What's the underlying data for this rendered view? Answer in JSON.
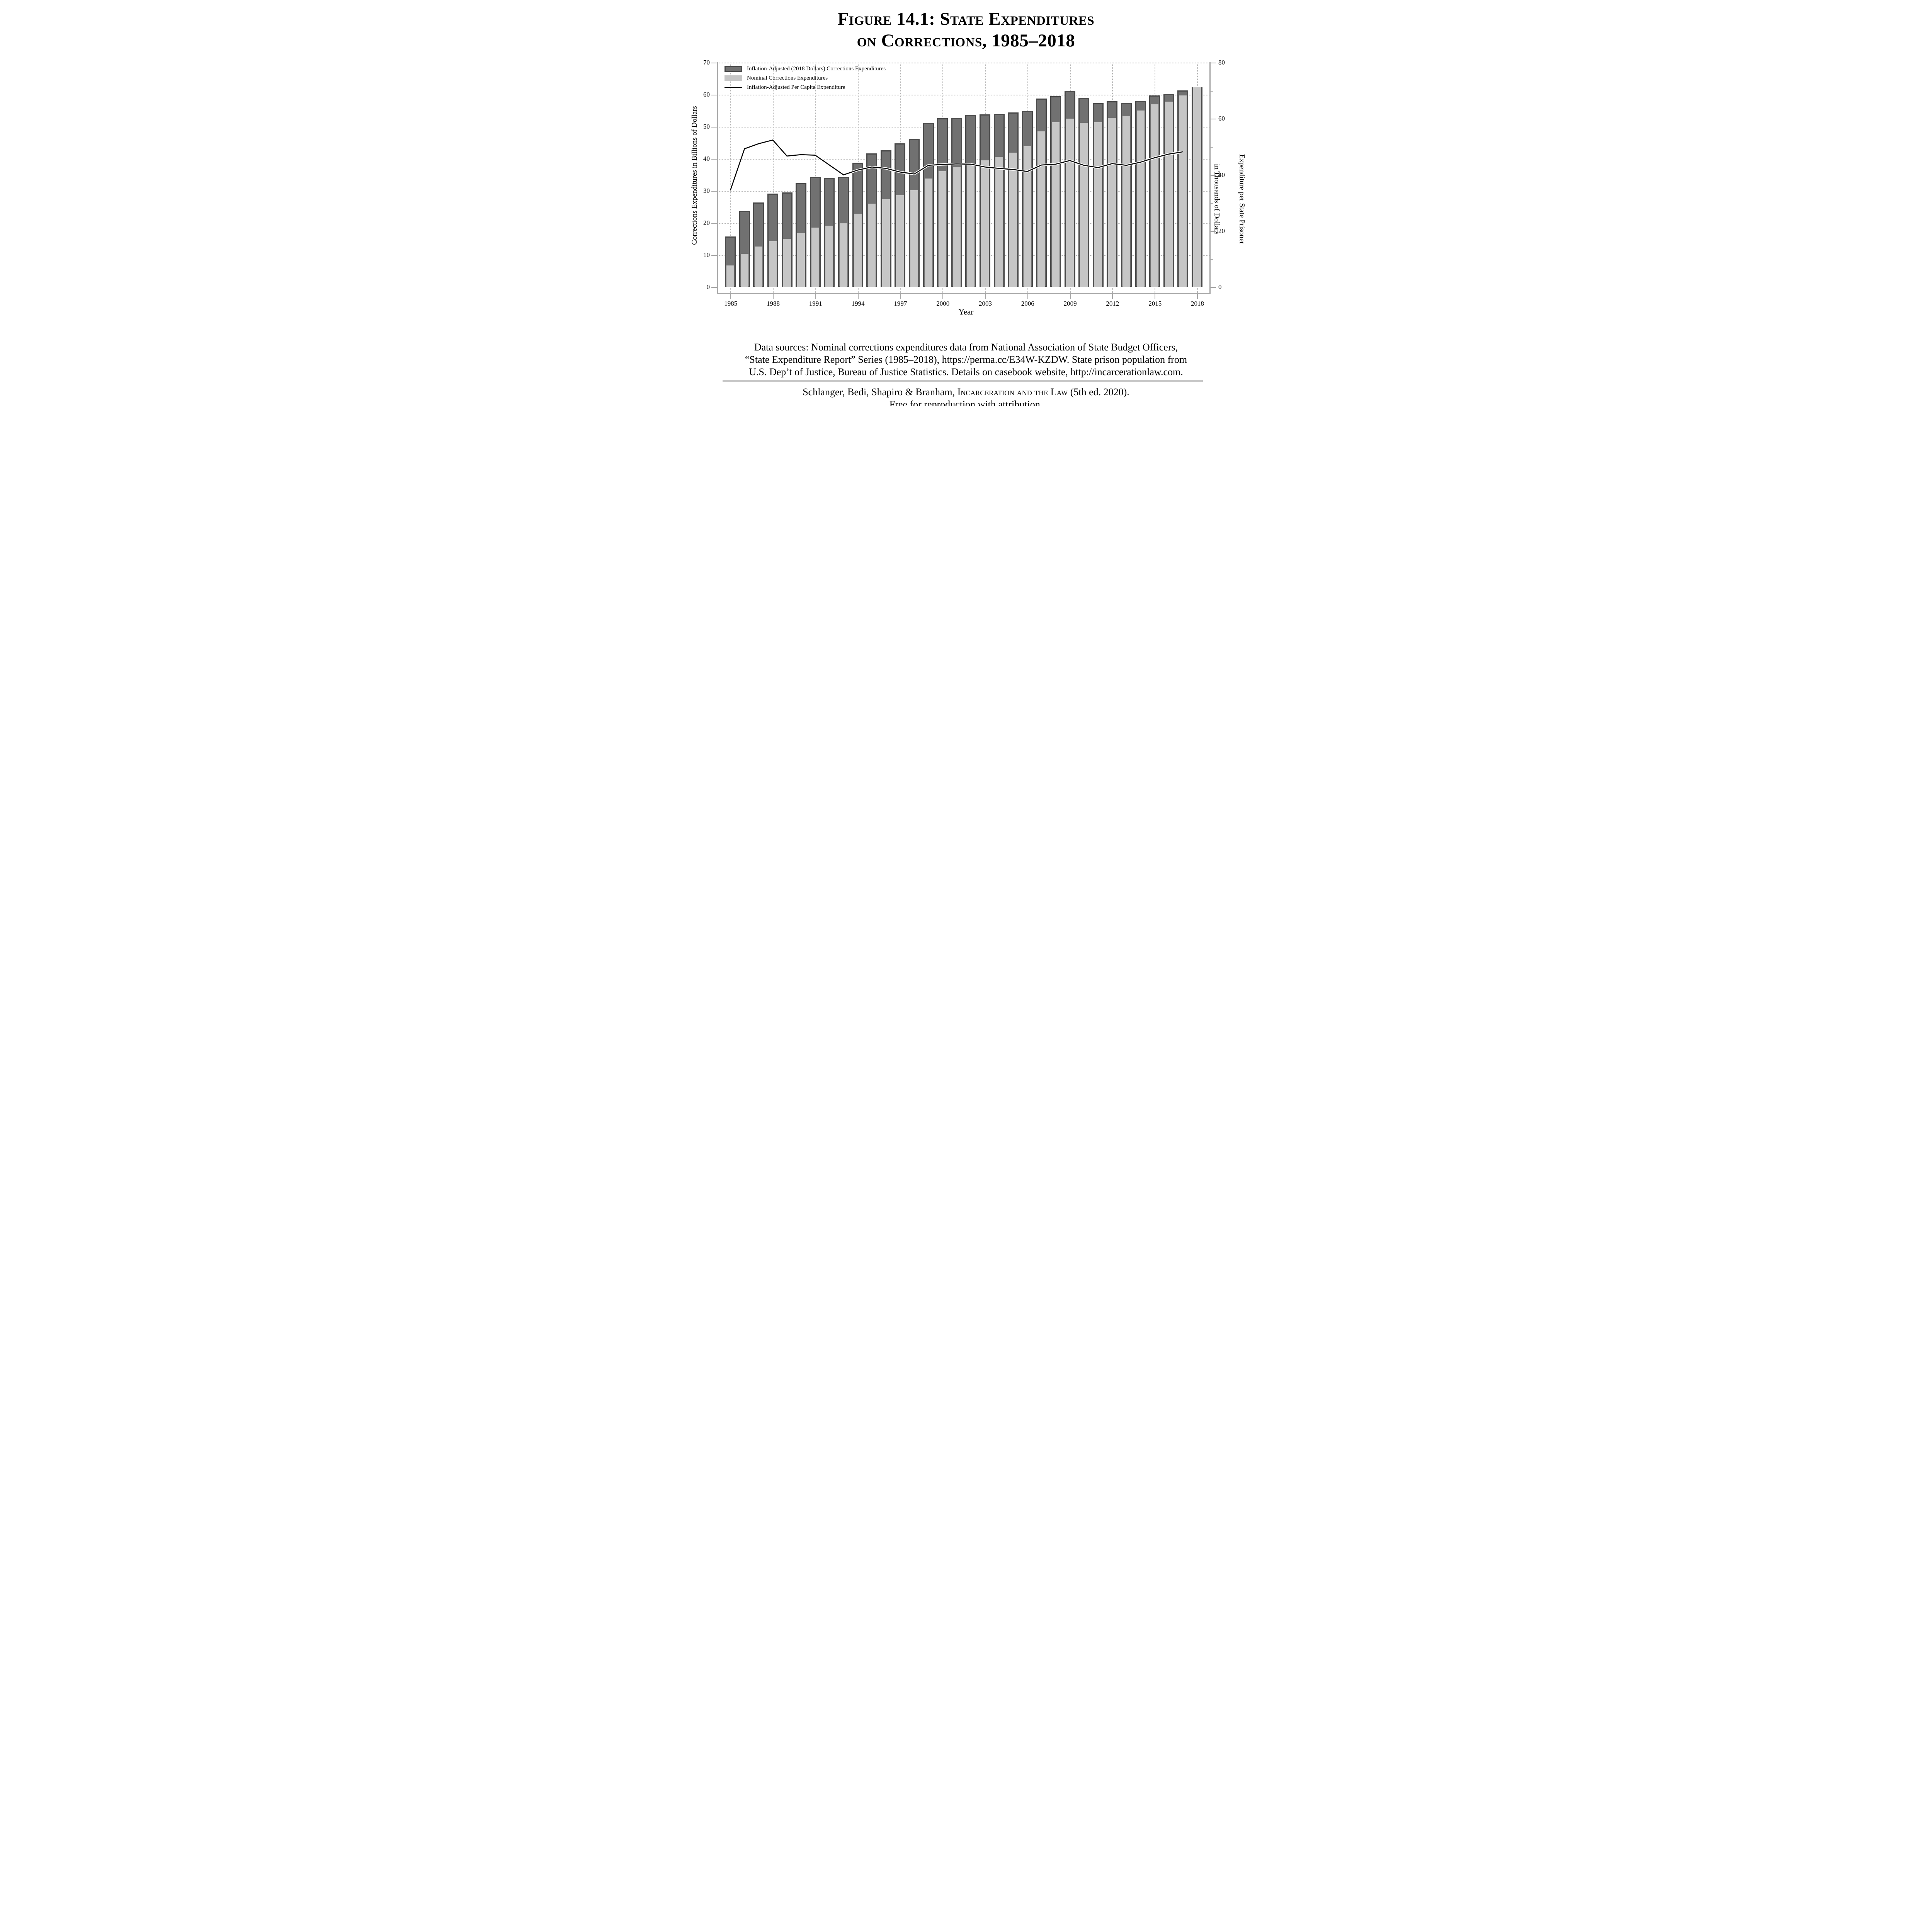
{
  "title": {
    "line1": "Figure 14.1: State Expenditures",
    "line2": "on Corrections, 1985–2018"
  },
  "legend": {
    "item1": "Inflation-Adjusted (2018 Dollars) Corrections Expenditures",
    "item2": "Nominal Corrections Expenditures",
    "item3": "Inflation-Adjusted Per Capita Expenditure"
  },
  "footer": {
    "line1": "Data sources: Nominal corrections expenditures data from National Association of State Budget Officers,",
    "line2": "“State Expenditure Report” Series (1985–2018), https://perma.cc/E34W-KZDW. State prison population from",
    "line3": "U.S. Dep’t of Justice, Bureau of Justice Statistics. Details on casebook website, http://incarcerationlaw.com.",
    "attribution_pre": "Schlanger, Bedi, Shapiro & Branham, ",
    "attribution_title": "Incarceration and the Law",
    "attribution_post": " (5th ed. 2020).",
    "attribution_line2": "Free for reproduction with attribution."
  },
  "chart_data": {
    "type": "bar",
    "x": [
      1985,
      1986,
      1987,
      1988,
      1989,
      1990,
      1991,
      1992,
      1993,
      1994,
      1995,
      1996,
      1997,
      1998,
      1999,
      2000,
      2001,
      2002,
      2003,
      2004,
      2005,
      2006,
      2007,
      2008,
      2009,
      2010,
      2011,
      2012,
      2013,
      2014,
      2015,
      2016,
      2017,
      2018
    ],
    "series": [
      {
        "name": "Inflation-Adjusted (2018 Dollars) Corrections Expenditures",
        "type": "bar",
        "axis": "left",
        "color": "#717171",
        "outline": "#4a4a4a",
        "values": [
          15.8,
          23.7,
          26.4,
          29.2,
          29.5,
          32.4,
          34.3,
          34.1,
          34.3,
          38.8,
          41.7,
          42.7,
          44.8,
          46.3,
          51.2,
          52.7,
          52.8,
          53.7,
          53.9,
          54.0,
          54.4,
          54.9,
          58.8,
          59.5,
          61.2,
          59.0,
          57.3,
          57.9,
          57.5,
          58.1,
          59.7,
          60.2,
          61.3,
          62.3
        ]
      },
      {
        "name": "Nominal Corrections Expenditures",
        "type": "bar",
        "axis": "left",
        "color": "#c6c6c6",
        "values": [
          6.8,
          10.4,
          12.6,
          14.3,
          15.1,
          16.9,
          18.6,
          19.2,
          19.9,
          22.9,
          26.0,
          27.5,
          28.7,
          30.2,
          33.9,
          36.1,
          37.3,
          38.4,
          39.5,
          40.6,
          41.9,
          44.0,
          48.5,
          51.5,
          52.5,
          51.2,
          51.4,
          52.8,
          53.3,
          55.1,
          57.0,
          57.8,
          59.8,
          62.3
        ]
      },
      {
        "name": "Inflation-Adjusted Per Capita Expenditure",
        "type": "line",
        "axis": "right",
        "color": "#000000",
        "casing_color": "#ffffff",
        "values": [
          34.5,
          49.3,
          51.1,
          52.4,
          46.7,
          47.2,
          47.0,
          43.5,
          40.0,
          41.7,
          42.8,
          42.3,
          41.0,
          40.3,
          43.4,
          43.7,
          43.9,
          43.8,
          42.8,
          42.3,
          41.9,
          41.2,
          43.5,
          43.8,
          45.1,
          43.4,
          42.6,
          44.0,
          43.4,
          44.5,
          46.1,
          47.4,
          48.2,
          null
        ]
      }
    ],
    "left_axis": {
      "label": "Corrections Expenditures in Billions of Dollars",
      "min": 0,
      "max": 70,
      "tick_step": 10
    },
    "right_axis": {
      "label_line1": "Expenditure per State Prisoner",
      "label_line2": "in Thousands of Dollars",
      "min": 0,
      "max": 80,
      "tick_step": 20,
      "minor_tick_step": 10
    },
    "x_axis": {
      "label": "Year",
      "tick_years": [
        1985,
        1988,
        1991,
        1994,
        1997,
        2000,
        2003,
        2006,
        2009,
        2012,
        2015,
        2018
      ]
    },
    "grid": {
      "horizontal": "dotted every 10 (left axis)",
      "vertical": "dotted at labeled years"
    },
    "legend_position": "top-left"
  }
}
